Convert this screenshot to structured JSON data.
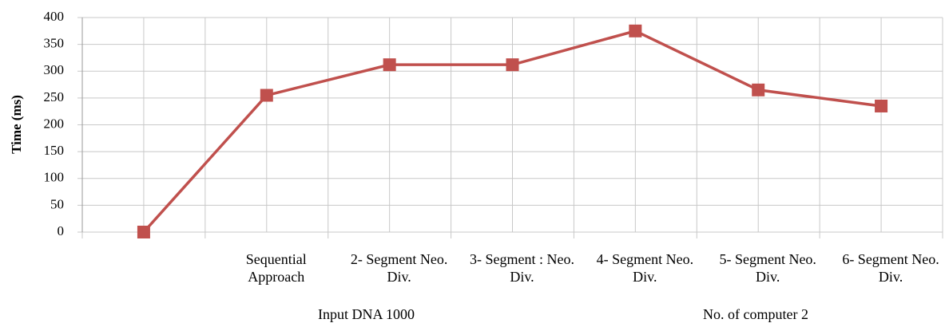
{
  "chart_data": {
    "type": "line",
    "y_label": "Time (ms)",
    "categories": [
      null,
      "Sequential Approach",
      "2- Segment Neo. Div.",
      "3- Segment : Neo. Div.",
      "4- Segment Neo. Div.",
      "5- Segment Neo. Div.",
      "6- Segment Neo. Div."
    ],
    "series": [
      {
        "name": "Time",
        "color": "#c0504d",
        "values": [
          0,
          255,
          312,
          312,
          375,
          265,
          235
        ]
      }
    ],
    "ylim": [
      0,
      400
    ],
    "yticks": [
      0,
      50,
      100,
      150,
      200,
      250,
      300,
      350,
      400
    ],
    "grid": true,
    "annotations": [
      "Input DNA 1000",
      "No. of computer 2"
    ]
  }
}
